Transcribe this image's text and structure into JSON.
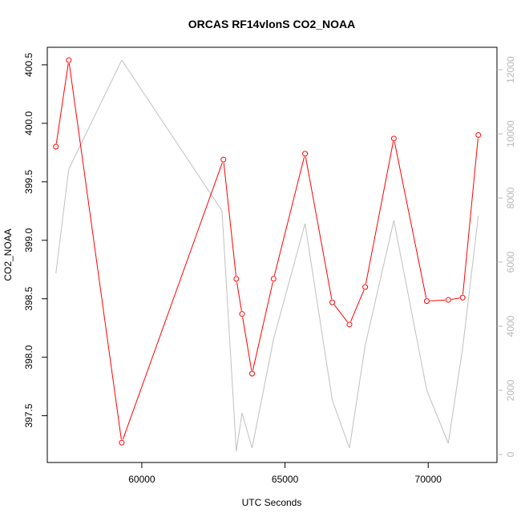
{
  "chart_data": {
    "type": "line",
    "title": "ORCAS RF14vlonS CO2_NOAA",
    "xlabel": "UTC Seconds",
    "ylabel": "CO2_NOAA",
    "xlim": [
      56700,
      72400
    ],
    "ylim": [
      397.1,
      400.65
    ],
    "y2lim": [
      -250,
      12700
    ],
    "x_ticks": [
      60000,
      65000,
      70000
    ],
    "y_ticks": [
      397.5,
      398.0,
      398.5,
      399.0,
      399.5,
      400.0,
      400.5
    ],
    "y_tick_labels": [
      "397.5",
      "398.0",
      "398.5",
      "399.0",
      "399.5",
      "400.0",
      "400.5"
    ],
    "y2_ticks": [
      0,
      2000,
      4000,
      6000,
      8000,
      10000,
      12000
    ],
    "grid": false,
    "series": [
      {
        "name": "",
        "axis": "left",
        "color": "#ff0000",
        "markers": true,
        "x": [
          57000,
          57450,
          59300,
          62850,
          63300,
          63500,
          63850,
          64600,
          65700,
          66650,
          67250,
          67800,
          68800,
          69950,
          70700,
          71200,
          71750
        ],
        "y": [
          399.8,
          400.54,
          397.27,
          399.69,
          398.67,
          398.37,
          397.86,
          398.67,
          399.74,
          398.47,
          398.28,
          398.6,
          399.87,
          398.48,
          398.49,
          398.51,
          399.9
        ]
      },
      {
        "name": "",
        "axis": "right",
        "color": "#c0c0c0",
        "markers": false,
        "x": [
          57000,
          57450,
          59300,
          62800,
          63300,
          63500,
          63850,
          64600,
          65700,
          66650,
          67250,
          67800,
          68800,
          69950,
          70700,
          71200,
          71750
        ],
        "y": [
          5650,
          8900,
          12300,
          7600,
          100,
          1300,
          200,
          3600,
          7200,
          1700,
          200,
          3400,
          7300,
          2000,
          350,
          3300,
          7450
        ]
      }
    ]
  }
}
